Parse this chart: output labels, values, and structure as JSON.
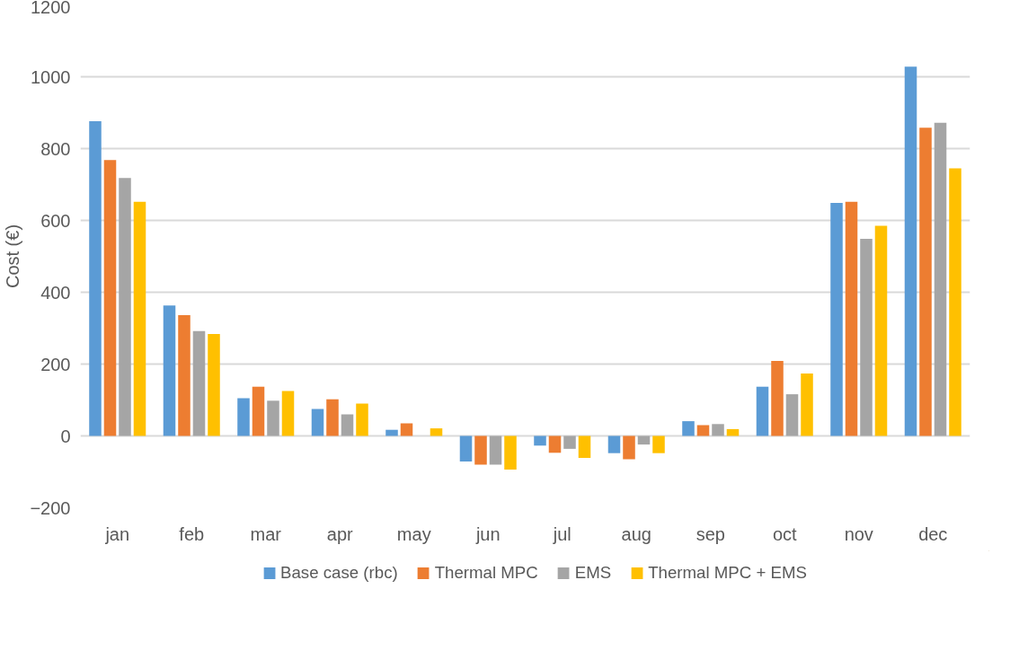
{
  "chart_data": {
    "type": "bar",
    "ylabel": "Cost (€)",
    "categories": [
      "jan",
      "feb",
      "mar",
      "apr",
      "may",
      "jun",
      "jul",
      "aug",
      "sep",
      "oct",
      "nov",
      "dec"
    ],
    "series": [
      {
        "name": "Base case (rbc)",
        "color": "#5b9bd5",
        "values": [
          876,
          363,
          105,
          75,
          17,
          -71,
          -27,
          -48,
          41,
          137,
          649,
          1028
        ]
      },
      {
        "name": "Thermal MPC",
        "color": "#ed7d31",
        "values": [
          768,
          336,
          137,
          102,
          35,
          -80,
          -47,
          -65,
          30,
          209,
          652,
          858
        ]
      },
      {
        "name": "EMS",
        "color": "#a5a5a5",
        "values": [
          718,
          292,
          98,
          60,
          0,
          -80,
          -36,
          -24,
          33,
          116,
          549,
          872
        ]
      },
      {
        "name": "Thermal MPC + EMS",
        "color": "#ffc000",
        "values": [
          652,
          284,
          125,
          90,
          21,
          -94,
          -61,
          -48,
          19,
          174,
          585,
          745
        ]
      }
    ],
    "ylim": [
      -200,
      1200
    ],
    "yticks": [
      -200,
      0,
      200,
      400,
      600,
      800,
      1000,
      1200
    ],
    "grid": "y",
    "legend": "bottom"
  }
}
